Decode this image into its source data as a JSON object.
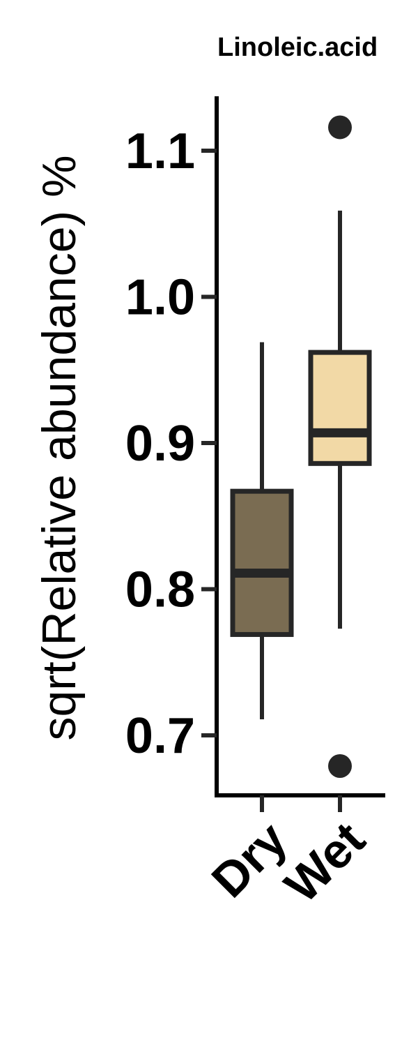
{
  "chart_data": {
    "type": "box",
    "title": "Linoleic.acid",
    "xlabel": "",
    "ylabel": "sqrt(Relative abundance) %",
    "ylim": [
      0.655,
      1.135
    ],
    "yticks": [
      0.7,
      0.8,
      0.9,
      1.0,
      1.1
    ],
    "ytick_labels": [
      "0.7",
      "0.8",
      "0.9",
      "1.0",
      "1.1"
    ],
    "categories": [
      "Dry",
      "Wet"
    ],
    "grid": false,
    "legend": "none",
    "boxes": [
      {
        "category": "Dry",
        "whisker_low": 0.711,
        "q1": 0.769,
        "median": 0.811,
        "q3": 0.867,
        "whisker_high": 0.969,
        "outliers": [],
        "fill": "#7a6c52"
      },
      {
        "category": "Wet",
        "whisker_low": 0.773,
        "q1": 0.886,
        "median": 0.907,
        "q3": 0.962,
        "whisker_high": 1.059,
        "outliers": [
          1.116,
          0.679
        ],
        "fill": "#f2d9a6"
      }
    ],
    "colors": {
      "stroke": "#262626",
      "axis": "#000000"
    }
  }
}
